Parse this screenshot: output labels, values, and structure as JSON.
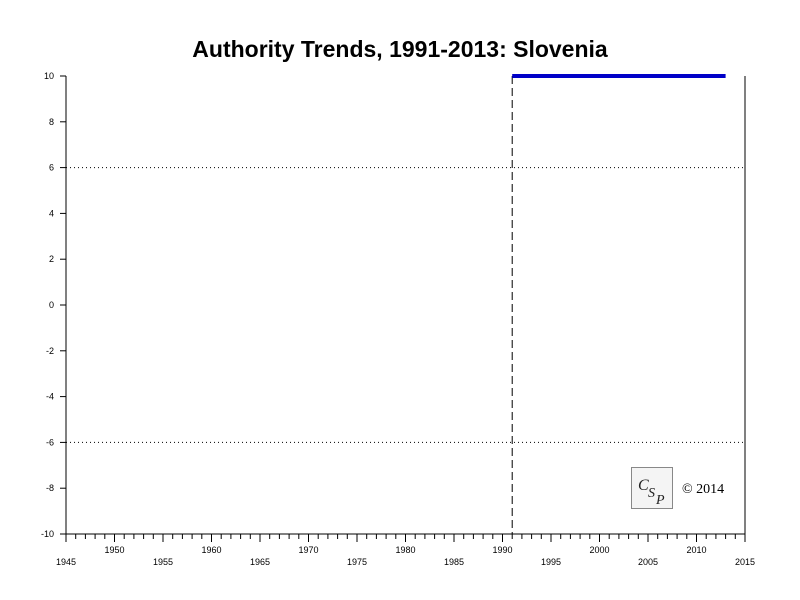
{
  "chart_data": {
    "type": "line",
    "title": "Authority Trends, 1991-2013: Slovenia",
    "xlabel": "",
    "ylabel": "",
    "xlim": [
      1945,
      2015
    ],
    "ylim": [
      -10,
      10
    ],
    "x_ticks_major": [
      1945,
      1950,
      1955,
      1960,
      1965,
      1970,
      1975,
      1980,
      1985,
      1990,
      1995,
      2000,
      2005,
      2010,
      2015
    ],
    "y_ticks": [
      10,
      8,
      6,
      4,
      2,
      0,
      -2,
      -4,
      -6,
      -8,
      -10
    ],
    "reference_lines_y": [
      6,
      -6
    ],
    "reference_line_x": 1991,
    "series": [
      {
        "color": "#0000c8",
        "x": [
          1991,
          2013
        ],
        "y": [
          10,
          10
        ]
      }
    ]
  },
  "logo_text": "CSP",
  "copyright": "© 2014"
}
